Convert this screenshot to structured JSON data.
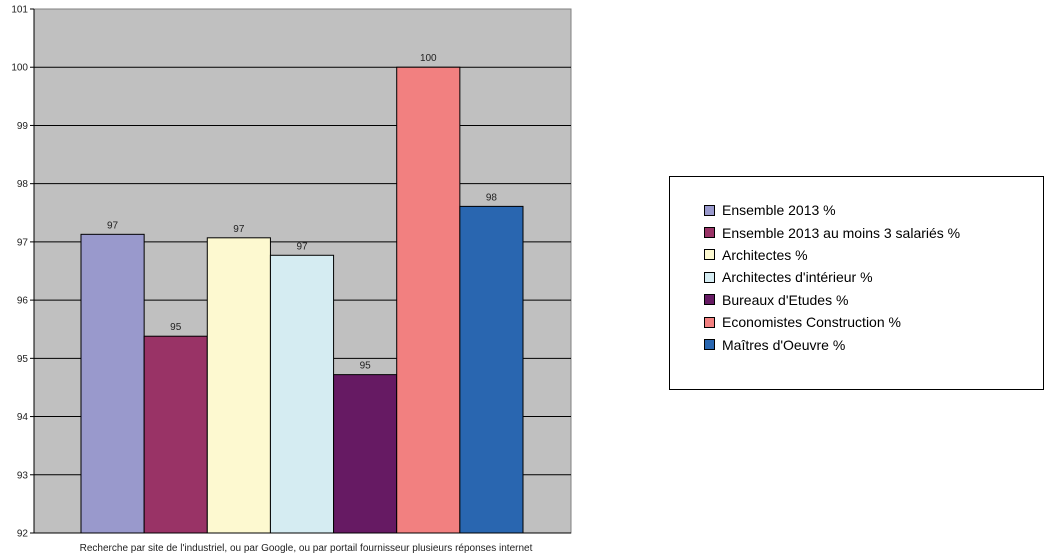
{
  "chart_data": {
    "type": "bar",
    "category_label": "Recherche par site de l'industriel, ou par Google, ou par portail fournisseur plusieurs réponses internet",
    "ylim": [
      92,
      101
    ],
    "yticks": [
      "92",
      "93",
      "94",
      "95",
      "96",
      "97",
      "98",
      "99",
      "100",
      "101"
    ],
    "grid": true,
    "plot_background": "#c0c0c0",
    "legend_position": "right",
    "series": [
      {
        "name": "Ensemble 2013 %",
        "value": 97.13,
        "label": "97",
        "color": "#9999cc"
      },
      {
        "name": "Ensemble 2013 au moins 3 salariés %",
        "value": 95.38,
        "label": "95",
        "color": "#993366"
      },
      {
        "name": "Architectes  %",
        "value": 97.07,
        "label": "97",
        "color": "#fdf9d0"
      },
      {
        "name": "Architectes  d'intérieur  %",
        "value": 96.77,
        "label": "97",
        "color": "#d5ecf2"
      },
      {
        "name": "Bureaux d'Etudes  %",
        "value": 94.72,
        "label": "95",
        "color": "#661a63"
      },
      {
        "name": "Economistes  Construction  %",
        "value": 100,
        "label": "100",
        "color": "#f28080"
      },
      {
        "name": "Maîtres d'Oeuvre %",
        "value": 97.61,
        "label": "98",
        "color": "#2966b0"
      }
    ]
  }
}
